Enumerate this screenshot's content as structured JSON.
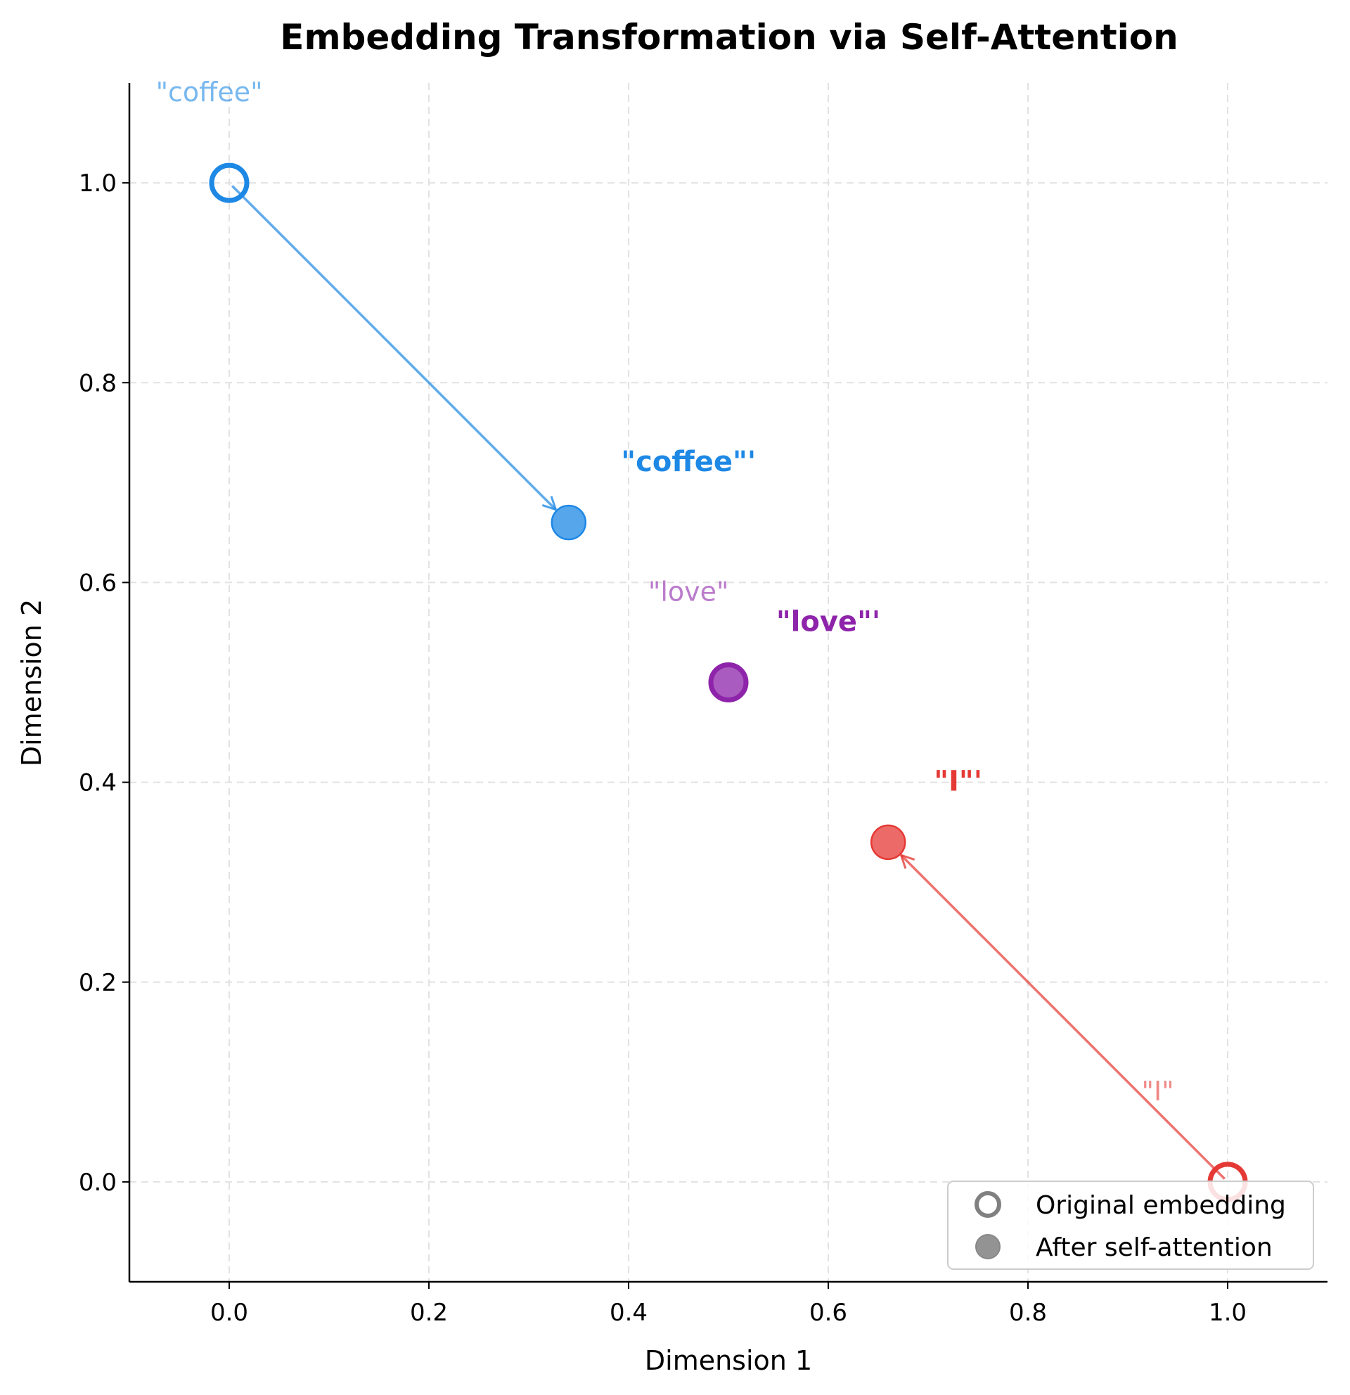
{
  "chart_data": {
    "type": "scatter",
    "title": "Embedding Transformation via Self-Attention",
    "xlabel": "Dimension 1",
    "ylabel": "Dimension 2",
    "xlim": [
      -0.1,
      1.1
    ],
    "ylim": [
      -0.1,
      1.1
    ],
    "xticks": [
      "0.0",
      "0.2",
      "0.4",
      "0.6",
      "0.8",
      "1.0"
    ],
    "yticks": [
      "0.0",
      "0.2",
      "0.4",
      "0.6",
      "0.8",
      "1.0"
    ],
    "grid": true,
    "legend": {
      "placement": "lower-right",
      "entries": [
        "Original embedding",
        "After self-attention"
      ]
    },
    "series": [
      {
        "token": "coffee",
        "color": "#1E88E5",
        "original": [
          0.0,
          1.0
        ],
        "after": [
          0.34,
          0.66
        ],
        "original_label": "\"coffee\"",
        "after_label": "\"coffee\"'",
        "original_label_at": [
          -0.02,
          1.09
        ],
        "after_label_at": [
          0.46,
          0.72
        ]
      },
      {
        "token": "love",
        "color": "#8E24AA",
        "original": [
          0.5,
          0.5
        ],
        "after": [
          0.5,
          0.5
        ],
        "original_label": "\"love\"",
        "after_label": "\"love\"'",
        "original_label_at": [
          0.46,
          0.59
        ],
        "after_label_at": [
          0.6,
          0.56
        ]
      },
      {
        "token": "I",
        "color": "#E53935",
        "original": [
          1.0,
          0.0
        ],
        "after": [
          0.66,
          0.34
        ],
        "original_label": "\"I\"",
        "after_label": "\"I\"'",
        "original_label_at": [
          0.93,
          0.09
        ],
        "after_label_at": [
          0.73,
          0.4
        ]
      }
    ]
  }
}
